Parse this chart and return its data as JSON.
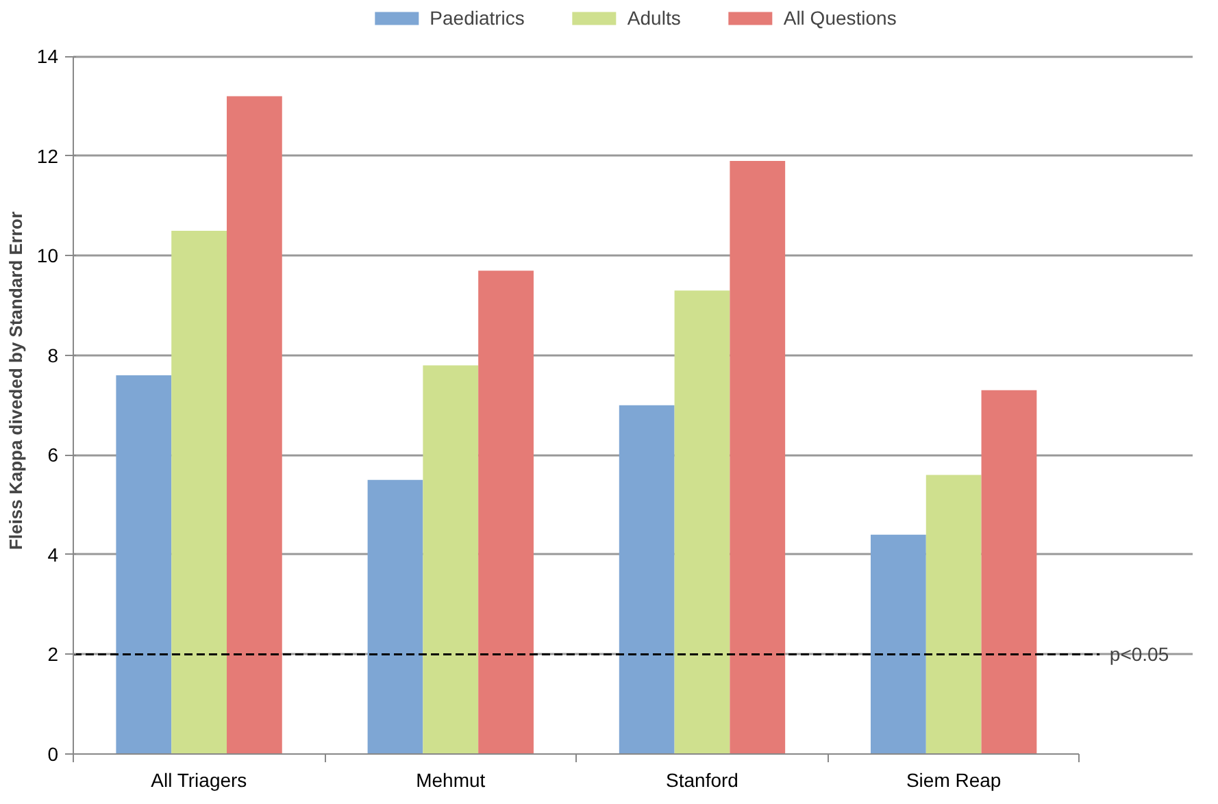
{
  "chart_data": {
    "type": "bar",
    "ylabel": "Fleiss Kappa diveded by Standard Error",
    "categories": [
      "All Triagers",
      "Mehmut",
      "Stanford",
      "Siem Reap"
    ],
    "series": [
      {
        "name": "Paediatrics",
        "color": "#7ea6d4",
        "values": [
          7.6,
          5.5,
          7.0,
          4.4
        ]
      },
      {
        "name": "Adults",
        "color": "#cfe08e",
        "values": [
          10.5,
          7.8,
          9.3,
          5.6
        ]
      },
      {
        "name": "All Questions",
        "color": "#e57b76",
        "values": [
          13.2,
          9.7,
          11.9,
          7.3
        ]
      }
    ],
    "ylim": [
      0,
      14
    ],
    "yticks": [
      0,
      2,
      4,
      6,
      8,
      10,
      12,
      14
    ],
    "grid": "y",
    "legend": "top",
    "ref_lines": [
      {
        "axis": "y",
        "value": 2,
        "label": "p<0.05",
        "line_style": "dashed",
        "color": "#000000"
      }
    ]
  }
}
